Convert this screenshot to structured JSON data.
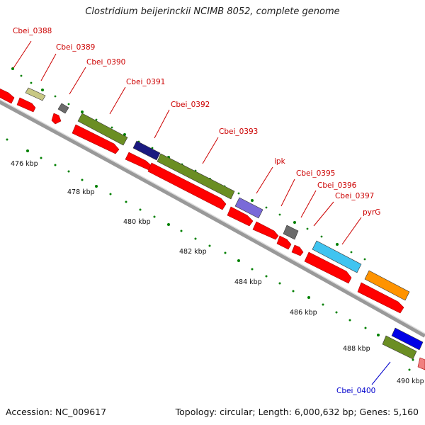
{
  "title": "Clostridium beijerinckii NCIMB 8052, complete genome",
  "footer": {
    "accession": "Accession: NC_009617",
    "summary": "Topology: circular; Length: 6,000,632 bp; Genes: 5,160"
  },
  "scale_labels": [
    "476 kbp",
    "478 kbp",
    "480 kbp",
    "482 kbp",
    "484 kbp",
    "486 kbp",
    "488 kbp",
    "490 kbp"
  ],
  "gene_labels": [
    {
      "text": "Cbei_0388",
      "color": "#cc0000"
    },
    {
      "text": "Cbei_0389",
      "color": "#cc0000"
    },
    {
      "text": "Cbei_0390",
      "color": "#cc0000"
    },
    {
      "text": "Cbei_0391",
      "color": "#cc0000"
    },
    {
      "text": "Cbei_0392",
      "color": "#cc0000"
    },
    {
      "text": "Cbei_0393",
      "color": "#cc0000"
    },
    {
      "text": "ipk",
      "color": "#cc0000"
    },
    {
      "text": "Cbei_0395",
      "color": "#cc0000"
    },
    {
      "text": "Cbei_0396",
      "color": "#cc0000"
    },
    {
      "text": "Cbei_0397",
      "color": "#cc0000"
    },
    {
      "text": "pyrG",
      "color": "#cc0000"
    },
    {
      "text": "Cbei_0400",
      "color": "#0000cc"
    }
  ],
  "colors": {
    "cds": "#ff0000",
    "backbone": "#999999",
    "tick": "#008000"
  }
}
